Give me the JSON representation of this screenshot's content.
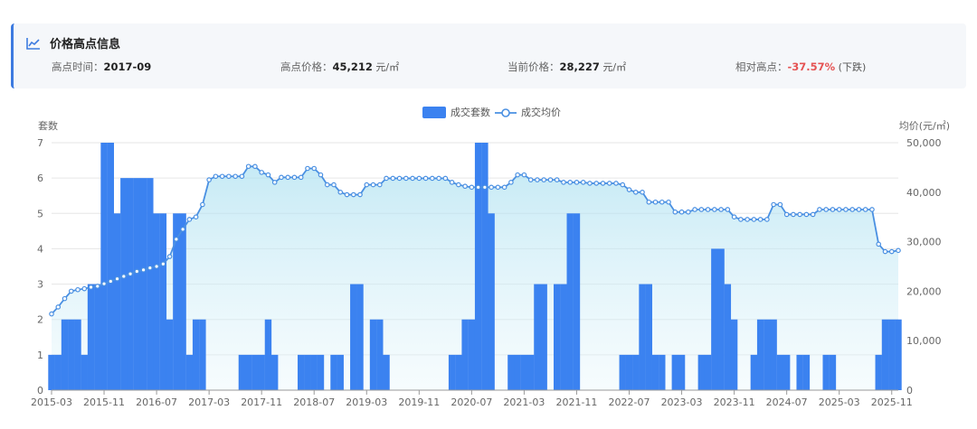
{
  "info": {
    "title": "价格高点信息",
    "icon": "line-chart-icon",
    "items": [
      {
        "label": "高点时间：",
        "value": "2017-09",
        "unit": ""
      },
      {
        "label": "高点价格：",
        "value": "45,212",
        "unit": " 元/㎡"
      },
      {
        "label": "当前价格：",
        "value": "28,227",
        "unit": " 元/㎡"
      },
      {
        "label": "相对高点：",
        "value": "-37.57%",
        "unit": " (下跌)"
      }
    ],
    "accent_color": "#3d7be0",
    "down_color": "#e55353"
  },
  "chart_data": {
    "type": "bar+line",
    "legend": [
      "成交套数",
      "成交均价"
    ],
    "legend_position": "top-center",
    "y_left_label": "套数",
    "y_right_label": "均价(元/㎡)",
    "y_left_range": [
      0,
      7
    ],
    "y_left_ticks": [
      "0",
      "1",
      "2",
      "3",
      "4",
      "5",
      "6",
      "7"
    ],
    "y_right_range": [
      0,
      50000
    ],
    "y_right_ticks": [
      "0",
      "10,000",
      "20,000",
      "30,000",
      "40,000",
      "50,000"
    ],
    "x_tick_labels": [
      "2015-03",
      "2015-11",
      "2016-07",
      "2017-03",
      "2017-11",
      "2018-07",
      "2019-03",
      "2019-11",
      "2020-07",
      "2021-03",
      "2021-11",
      "2022-07",
      "2023-03",
      "2023-11",
      "2024-07",
      "2025-03",
      "2025-11"
    ],
    "x_start": "2015-03",
    "x_end": "2025-12",
    "bar_color": "#3b82f0",
    "line_color": "#4a90e2",
    "grid": true,
    "bars": [
      {
        "x": "2015-03",
        "v": 1
      },
      {
        "x": "2015-04",
        "v": 1
      },
      {
        "x": "2015-05",
        "v": 2
      },
      {
        "x": "2015-06",
        "v": 2
      },
      {
        "x": "2015-07",
        "v": 2
      },
      {
        "x": "2015-08",
        "v": 1
      },
      {
        "x": "2015-09",
        "v": 3
      },
      {
        "x": "2015-10",
        "v": 3
      },
      {
        "x": "2015-11",
        "v": 7
      },
      {
        "x": "2015-12",
        "v": 7
      },
      {
        "x": "2016-01",
        "v": 5
      },
      {
        "x": "2016-02",
        "v": 6
      },
      {
        "x": "2016-03",
        "v": 6
      },
      {
        "x": "2016-04",
        "v": 6
      },
      {
        "x": "2016-05",
        "v": 6
      },
      {
        "x": "2016-06",
        "v": 6
      },
      {
        "x": "2016-07",
        "v": 5
      },
      {
        "x": "2016-08",
        "v": 5
      },
      {
        "x": "2016-09",
        "v": 2
      },
      {
        "x": "2016-10",
        "v": 5
      },
      {
        "x": "2016-11",
        "v": 5
      },
      {
        "x": "2016-12",
        "v": 1
      },
      {
        "x": "2017-01",
        "v": 2
      },
      {
        "x": "2017-02",
        "v": 2
      },
      {
        "x": "2017-08",
        "v": 1
      },
      {
        "x": "2017-09",
        "v": 1
      },
      {
        "x": "2017-10",
        "v": 1
      },
      {
        "x": "2017-11",
        "v": 1
      },
      {
        "x": "2017-12",
        "v": 2
      },
      {
        "x": "2018-01",
        "v": 1
      },
      {
        "x": "2018-05",
        "v": 1
      },
      {
        "x": "2018-06",
        "v": 1
      },
      {
        "x": "2018-07",
        "v": 1
      },
      {
        "x": "2018-08",
        "v": 1
      },
      {
        "x": "2018-10",
        "v": 1
      },
      {
        "x": "2018-11",
        "v": 1
      },
      {
        "x": "2019-01",
        "v": 3
      },
      {
        "x": "2019-02",
        "v": 3
      },
      {
        "x": "2019-04",
        "v": 2
      },
      {
        "x": "2019-05",
        "v": 2
      },
      {
        "x": "2019-06",
        "v": 1
      },
      {
        "x": "2020-04",
        "v": 1
      },
      {
        "x": "2020-05",
        "v": 1
      },
      {
        "x": "2020-06",
        "v": 2
      },
      {
        "x": "2020-07",
        "v": 2
      },
      {
        "x": "2020-08",
        "v": 7
      },
      {
        "x": "2020-09",
        "v": 7
      },
      {
        "x": "2020-10",
        "v": 5
      },
      {
        "x": "2021-01",
        "v": 1
      },
      {
        "x": "2021-02",
        "v": 1
      },
      {
        "x": "2021-03",
        "v": 1
      },
      {
        "x": "2021-04",
        "v": 1
      },
      {
        "x": "2021-05",
        "v": 3
      },
      {
        "x": "2021-06",
        "v": 3
      },
      {
        "x": "2021-08",
        "v": 3
      },
      {
        "x": "2021-09",
        "v": 3
      },
      {
        "x": "2021-10",
        "v": 5
      },
      {
        "x": "2021-11",
        "v": 5
      },
      {
        "x": "2022-06",
        "v": 1
      },
      {
        "x": "2022-07",
        "v": 1
      },
      {
        "x": "2022-08",
        "v": 1
      },
      {
        "x": "2022-09",
        "v": 3
      },
      {
        "x": "2022-10",
        "v": 3
      },
      {
        "x": "2022-11",
        "v": 1
      },
      {
        "x": "2022-12",
        "v": 1
      },
      {
        "x": "2023-02",
        "v": 1
      },
      {
        "x": "2023-03",
        "v": 1
      },
      {
        "x": "2023-06",
        "v": 1
      },
      {
        "x": "2023-07",
        "v": 1
      },
      {
        "x": "2023-08",
        "v": 4
      },
      {
        "x": "2023-09",
        "v": 4
      },
      {
        "x": "2023-10",
        "v": 3
      },
      {
        "x": "2023-11",
        "v": 2
      },
      {
        "x": "2024-02",
        "v": 1
      },
      {
        "x": "2024-03",
        "v": 2
      },
      {
        "x": "2024-04",
        "v": 2
      },
      {
        "x": "2024-05",
        "v": 2
      },
      {
        "x": "2024-06",
        "v": 1
      },
      {
        "x": "2024-07",
        "v": 1
      },
      {
        "x": "2024-09",
        "v": 1
      },
      {
        "x": "2024-10",
        "v": 1
      },
      {
        "x": "2025-01",
        "v": 1
      },
      {
        "x": "2025-02",
        "v": 1
      },
      {
        "x": "2025-09",
        "v": 1
      },
      {
        "x": "2025-10",
        "v": 2
      },
      {
        "x": "2025-11",
        "v": 2
      },
      {
        "x": "2025-12",
        "v": 2
      }
    ],
    "price_series": [
      [
        "2015-03",
        15400
      ],
      [
        "2015-04",
        16800
      ],
      [
        "2015-05",
        18500
      ],
      [
        "2015-06",
        20000
      ],
      [
        "2015-07",
        20300
      ],
      [
        "2015-08",
        20500
      ],
      [
        "2015-09",
        20800
      ],
      [
        "2015-10",
        21000
      ],
      [
        "2015-11",
        21500
      ],
      [
        "2015-12",
        22000
      ],
      [
        "2016-01",
        22500
      ],
      [
        "2016-02",
        23000
      ],
      [
        "2016-03",
        23500
      ],
      [
        "2016-04",
        24000
      ],
      [
        "2016-05",
        24300
      ],
      [
        "2016-06",
        24700
      ],
      [
        "2016-07",
        25000
      ],
      [
        "2016-08",
        25500
      ],
      [
        "2016-09",
        27000
      ],
      [
        "2016-10",
        30500
      ],
      [
        "2016-11",
        32500
      ],
      [
        "2016-12",
        34500
      ],
      [
        "2017-01",
        35000
      ],
      [
        "2017-02",
        37500
      ],
      [
        "2017-03",
        42500
      ],
      [
        "2017-04",
        43200
      ],
      [
        "2017-05",
        43200
      ],
      [
        "2017-06",
        43200
      ],
      [
        "2017-07",
        43200
      ],
      [
        "2017-08",
        43200
      ],
      [
        "2017-09",
        45212
      ],
      [
        "2017-10",
        45200
      ],
      [
        "2017-11",
        44000
      ],
      [
        "2017-12",
        43500
      ],
      [
        "2018-01",
        42000
      ],
      [
        "2018-02",
        43000
      ],
      [
        "2018-03",
        43000
      ],
      [
        "2018-04",
        43000
      ],
      [
        "2018-05",
        43000
      ],
      [
        "2018-06",
        44800
      ],
      [
        "2018-07",
        44800
      ],
      [
        "2018-08",
        43500
      ],
      [
        "2018-09",
        41500
      ],
      [
        "2018-10",
        41500
      ],
      [
        "2018-11",
        40000
      ],
      [
        "2018-12",
        39500
      ],
      [
        "2019-01",
        39500
      ],
      [
        "2019-02",
        39500
      ],
      [
        "2019-03",
        41500
      ],
      [
        "2019-04",
        41500
      ],
      [
        "2019-05",
        41500
      ],
      [
        "2019-06",
        42800
      ],
      [
        "2019-07",
        42800
      ],
      [
        "2019-08",
        42800
      ],
      [
        "2019-09",
        42800
      ],
      [
        "2019-10",
        42800
      ],
      [
        "2019-11",
        42800
      ],
      [
        "2019-12",
        42800
      ],
      [
        "2020-01",
        42800
      ],
      [
        "2020-02",
        42800
      ],
      [
        "2020-03",
        42800
      ],
      [
        "2020-04",
        42000
      ],
      [
        "2020-05",
        41500
      ],
      [
        "2020-06",
        41200
      ],
      [
        "2020-07",
        41000
      ],
      [
        "2020-08",
        41000
      ],
      [
        "2020-09",
        41000
      ],
      [
        "2020-10",
        41000
      ],
      [
        "2020-11",
        41000
      ],
      [
        "2020-12",
        41000
      ],
      [
        "2021-01",
        42000
      ],
      [
        "2021-02",
        43500
      ],
      [
        "2021-03",
        43500
      ],
      [
        "2021-04",
        42500
      ],
      [
        "2021-05",
        42500
      ],
      [
        "2021-06",
        42500
      ],
      [
        "2021-07",
        42500
      ],
      [
        "2021-08",
        42500
      ],
      [
        "2021-09",
        42000
      ],
      [
        "2021-10",
        42000
      ],
      [
        "2021-11",
        42000
      ],
      [
        "2021-12",
        42000
      ],
      [
        "2022-01",
        41800
      ],
      [
        "2022-02",
        41800
      ],
      [
        "2022-03",
        41800
      ],
      [
        "2022-04",
        41800
      ],
      [
        "2022-05",
        41800
      ],
      [
        "2022-06",
        41500
      ],
      [
        "2022-07",
        40500
      ],
      [
        "2022-08",
        40000
      ],
      [
        "2022-09",
        40000
      ],
      [
        "2022-10",
        38000
      ],
      [
        "2022-11",
        38000
      ],
      [
        "2022-12",
        38000
      ],
      [
        "2023-01",
        38000
      ],
      [
        "2023-02",
        36000
      ],
      [
        "2023-03",
        36000
      ],
      [
        "2023-04",
        36000
      ],
      [
        "2023-05",
        36500
      ],
      [
        "2023-06",
        36500
      ],
      [
        "2023-07",
        36500
      ],
      [
        "2023-08",
        36500
      ],
      [
        "2023-09",
        36500
      ],
      [
        "2023-10",
        36500
      ],
      [
        "2023-11",
        35000
      ],
      [
        "2023-12",
        34500
      ],
      [
        "2024-01",
        34500
      ],
      [
        "2024-02",
        34500
      ],
      [
        "2024-03",
        34500
      ],
      [
        "2024-04",
        34500
      ],
      [
        "2024-05",
        37500
      ],
      [
        "2024-06",
        37500
      ],
      [
        "2024-07",
        35500
      ],
      [
        "2024-08",
        35500
      ],
      [
        "2024-09",
        35500
      ],
      [
        "2024-10",
        35500
      ],
      [
        "2024-11",
        35500
      ],
      [
        "2024-12",
        36500
      ],
      [
        "2025-01",
        36500
      ],
      [
        "2025-02",
        36500
      ],
      [
        "2025-03",
        36500
      ],
      [
        "2025-04",
        36500
      ],
      [
        "2025-05",
        36500
      ],
      [
        "2025-06",
        36500
      ],
      [
        "2025-07",
        36500
      ],
      [
        "2025-08",
        36500
      ],
      [
        "2025-09",
        29500
      ],
      [
        "2025-10",
        28000
      ],
      [
        "2025-11",
        28000
      ],
      [
        "2025-12",
        28227
      ]
    ]
  }
}
